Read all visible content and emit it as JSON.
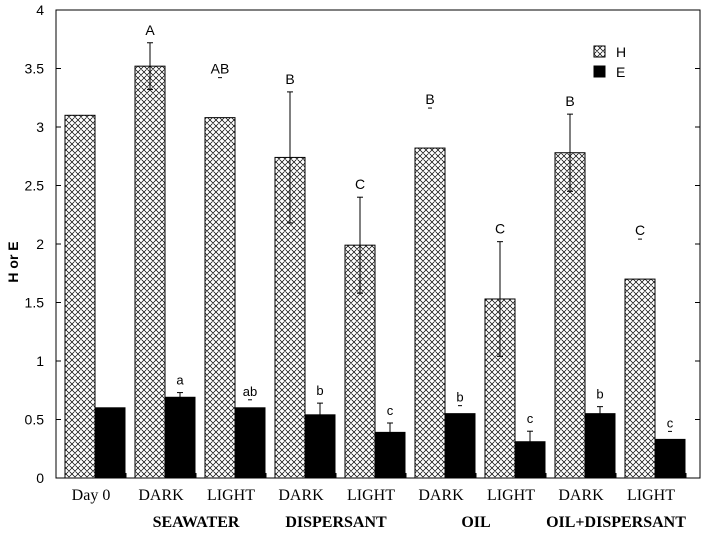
{
  "chart_data": {
    "type": "bar",
    "title": "",
    "xlabel": "",
    "ylabel": "H or E",
    "ylim": [
      0,
      4
    ],
    "yticks": [
      0,
      0.5,
      1,
      1.5,
      2,
      2.5,
      3,
      3.5,
      4
    ],
    "ytick_labels": [
      "0",
      "0.5",
      "1",
      "1.5",
      "2",
      "2.5",
      "3",
      "3.5",
      "4"
    ],
    "categories": [
      "Day 0",
      "DARK",
      "LIGHT",
      "DARK",
      "LIGHT",
      "DARK",
      "LIGHT",
      "DARK",
      "LIGHT"
    ],
    "groups": [
      {
        "label": "SEAWATER",
        "categories": [
          1,
          2
        ]
      },
      {
        "label": "DISPERSANT",
        "categories": [
          3,
          4
        ]
      },
      {
        "label": "OIL",
        "categories": [
          5,
          6
        ]
      },
      {
        "label": "OIL+DISPERSANT",
        "categories": [
          7,
          8
        ]
      }
    ],
    "series": [
      {
        "name": "H",
        "pattern": "crosshatch",
        "values": [
          3.1,
          3.52,
          3.08,
          2.74,
          1.99,
          2.82,
          1.53,
          2.78,
          1.7
        ],
        "errors": [
          0,
          0.2,
          0,
          0.56,
          0.41,
          0,
          0.49,
          0.33,
          0
        ],
        "significance": [
          "",
          "A",
          "AB",
          "B",
          "C",
          "B",
          "C",
          "B",
          "C"
        ]
      },
      {
        "name": "E",
        "color": "#000000",
        "values": [
          0.6,
          0.69,
          0.6,
          0.54,
          0.39,
          0.55,
          0.31,
          0.55,
          0.33
        ],
        "errors": [
          0,
          0.04,
          0,
          0.1,
          0.08,
          0,
          0.09,
          0.06,
          0
        ],
        "significance": [
          "",
          "a",
          "ab",
          "b",
          "c",
          "b",
          "c",
          "b",
          "c"
        ]
      }
    ],
    "legend": {
      "position": "top-right",
      "entries": [
        "H",
        "E"
      ]
    },
    "grid": false
  }
}
